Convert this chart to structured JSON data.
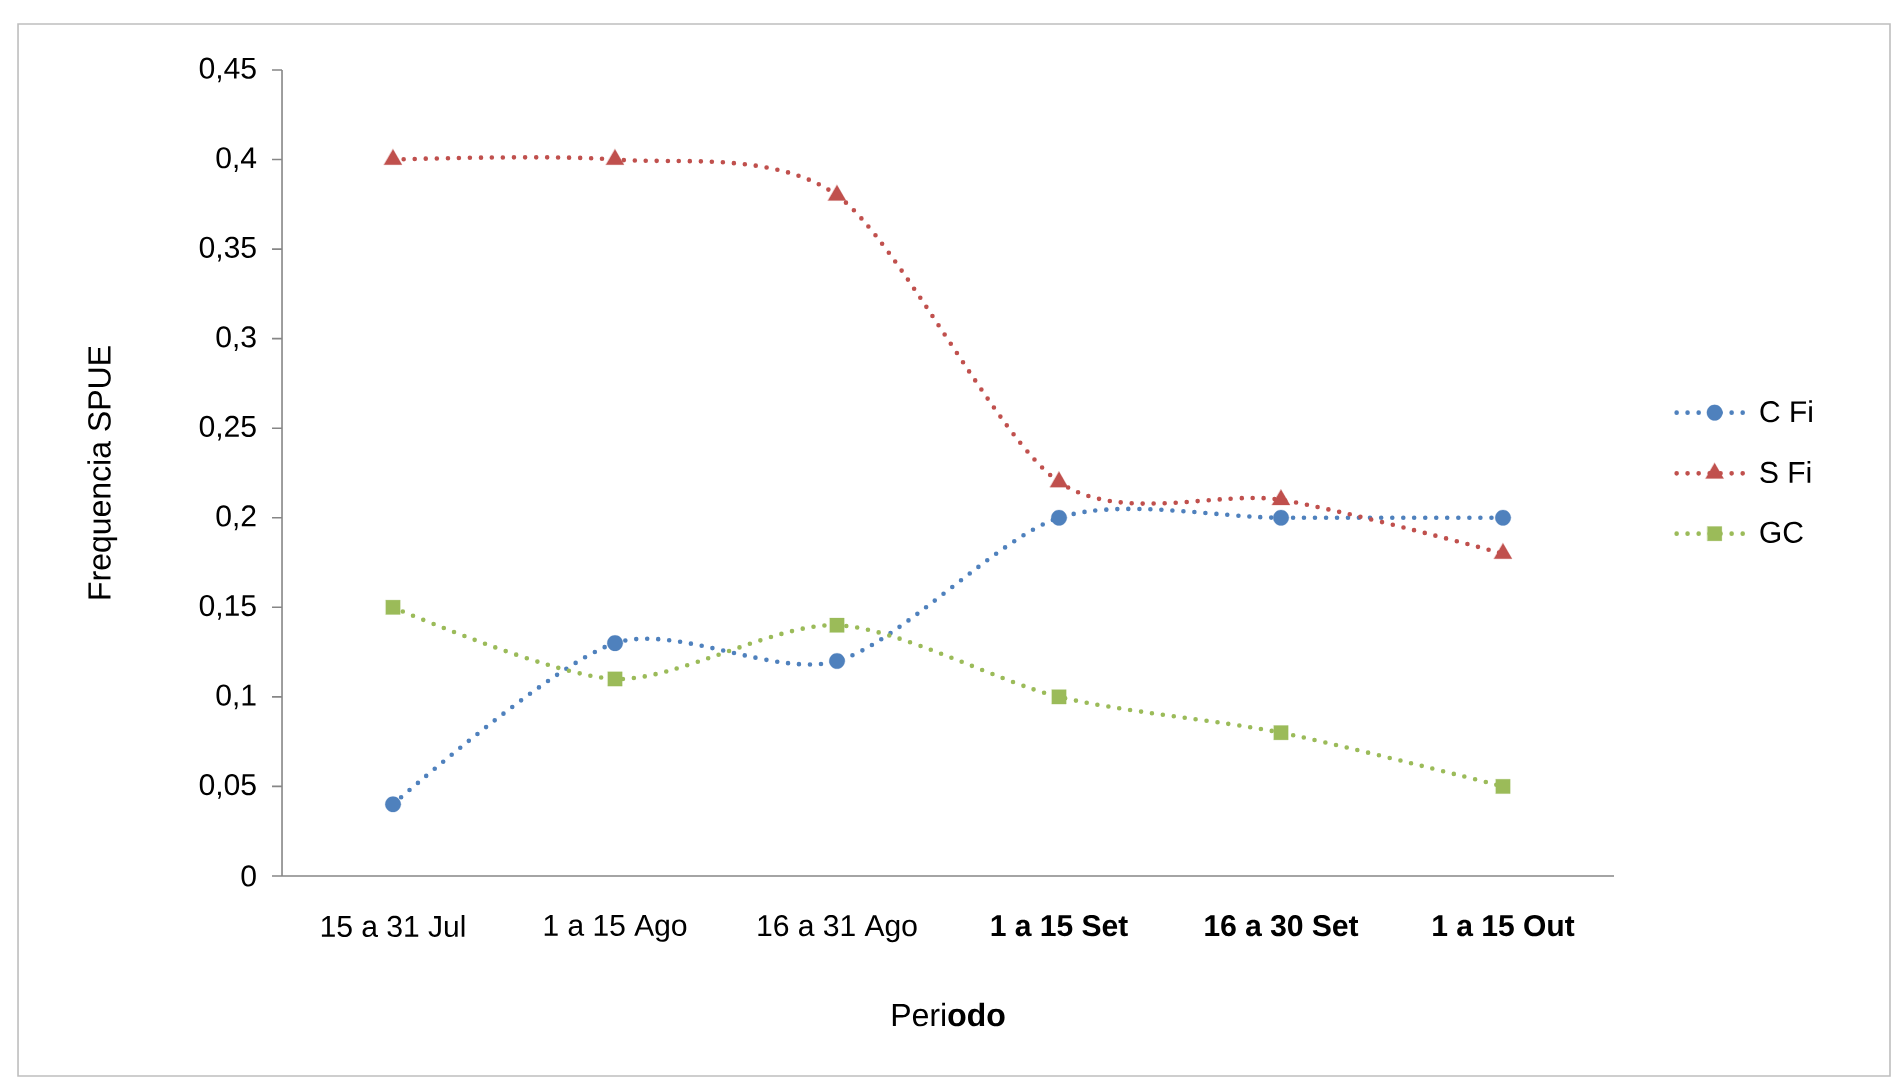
{
  "chart_data": {
    "type": "line",
    "xlabel": "Peri**odo**",
    "ylabel": "Frequencia SPUE",
    "categories": [
      "15 a 31 Jul",
      "1 a 15 Ago",
      "16 a 31 Ago",
      "**1 a 15 Set**",
      "**16 a 30 Set**",
      "**1 a 15 Out**"
    ],
    "series": [
      {
        "name": "C Fi",
        "color": "#4f81bd",
        "marker": "circle",
        "values": [
          0.04,
          0.13,
          0.12,
          0.2,
          0.2,
          0.2
        ]
      },
      {
        "name": "S Fi",
        "color": "#c0504d",
        "marker": "triangle",
        "values": [
          0.4,
          0.4,
          0.38,
          0.22,
          0.21,
          0.18
        ]
      },
      {
        "name": "GC",
        "color": "#9bbb59",
        "marker": "square",
        "values": [
          0.15,
          0.11,
          0.14,
          0.1,
          0.08,
          0.05
        ]
      }
    ],
    "ylim": [
      0,
      0.45
    ],
    "yticks": [
      0,
      {
        "value": 0.05,
        "label": "0,05"
      },
      {
        "value": 0.1,
        "label": "0,1"
      },
      {
        "value": 0.15,
        "label": "0,15"
      },
      {
        "value": 0.2,
        "label": "0,2"
      },
      {
        "value": 0.25,
        "label": "0,25"
      },
      {
        "value": 0.3,
        "label": "0,3"
      },
      {
        "value": 0.35,
        "label": "0,35"
      },
      {
        "value": 0.4,
        "label": "0,4"
      },
      {
        "value": 0.45,
        "label": "0,45"
      }
    ],
    "grid": false,
    "legend": "right",
    "line_style": "dotted"
  }
}
